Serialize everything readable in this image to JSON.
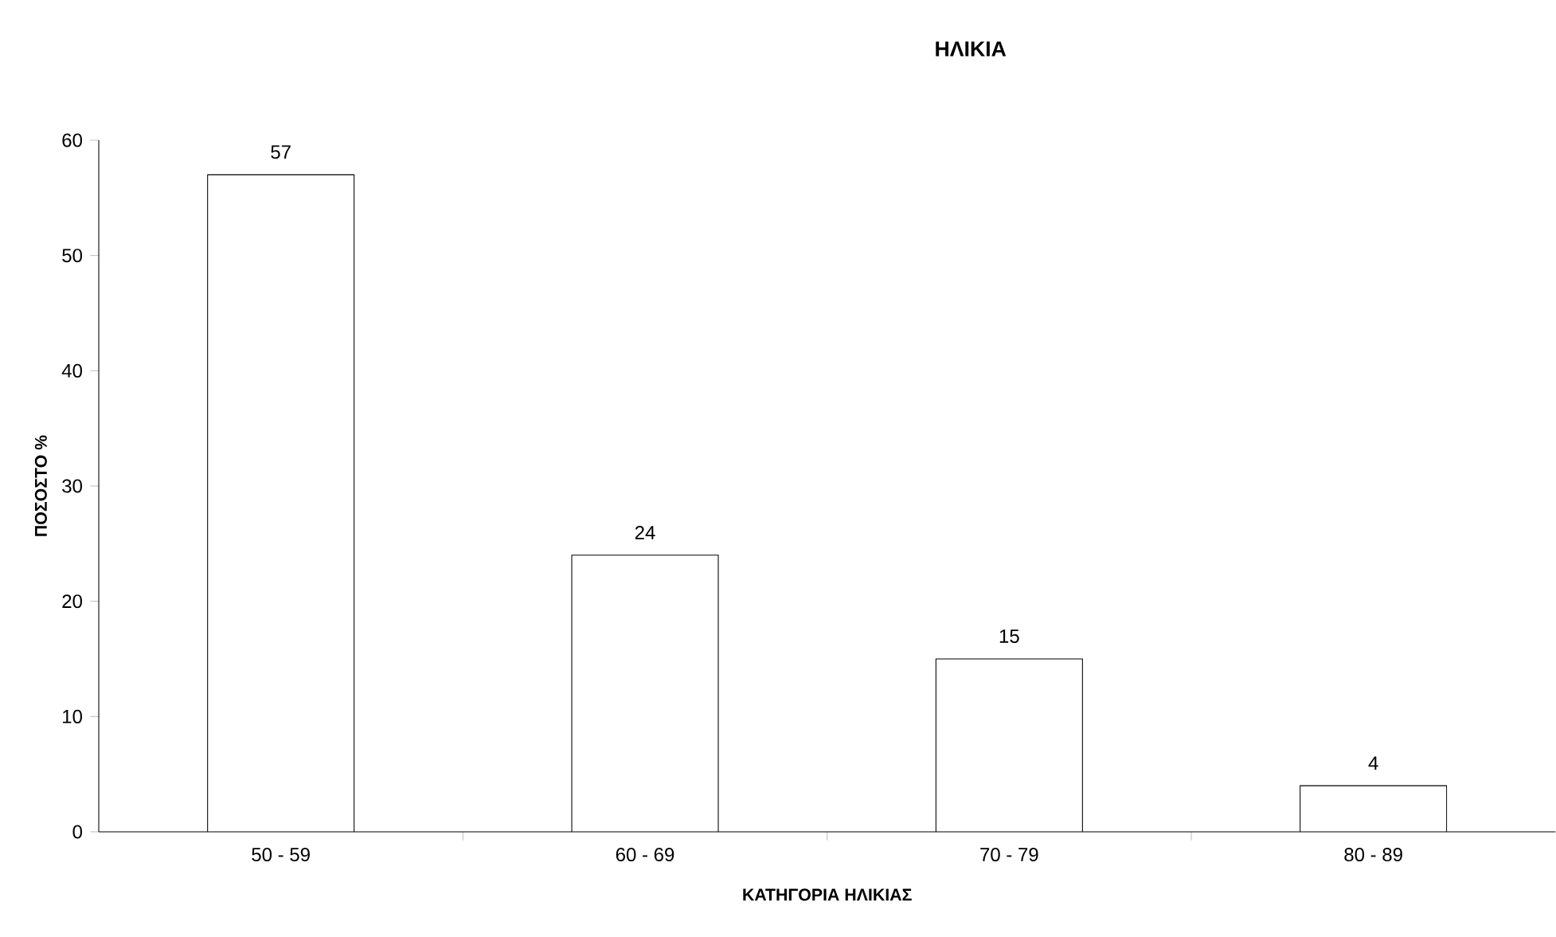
{
  "chart_data": {
    "type": "bar",
    "title": "ΗΛΙΚΙΑ",
    "xlabel": "ΚΑΤΗΓΟΡΙΑ ΗΛΙΚΙΑΣ",
    "ylabel": "ΠΟΣΟΣΤΟ %",
    "categories": [
      "50 - 59",
      "60 - 69",
      "70 - 79",
      "80 - 89"
    ],
    "values": [
      57,
      24,
      15,
      4
    ],
    "color": "#ffffff",
    "ylim": [
      0,
      60
    ],
    "yticks": [
      0,
      10,
      20,
      30,
      40,
      50,
      60
    ],
    "data_labels": true,
    "grid": false
  }
}
